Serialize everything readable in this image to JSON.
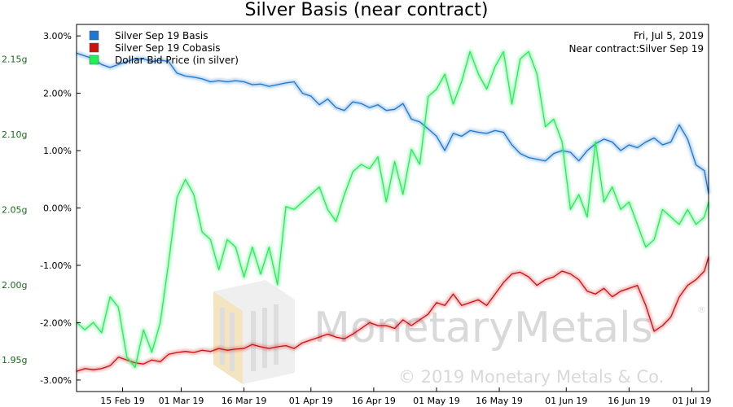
{
  "chart_data": {
    "type": "line",
    "title": "Silver Basis (near contract)",
    "annotation": {
      "date": "Fri, Jul 5, 2019",
      "contract": "Near contract:Silver Sep 19"
    },
    "watermark": {
      "brand": "MonetaryMetals",
      "copyright": "© 2019 Monetary Metals & Co.",
      "registered": "®"
    },
    "x_ticks": [
      "15 Feb 19",
      "01 Mar 19",
      "16 Mar 19",
      "01 Apr 19",
      "16 Apr 19",
      "01 May 19",
      "16 May 19",
      "01 Jun 19",
      "16 Jun 19",
      "01 Jul 19"
    ],
    "left_axis": {
      "ticks": [
        "3.00%",
        "2.00%",
        "1.00%",
        "0.00%",
        "-1.00%",
        "-2.00%",
        "-3.00%"
      ],
      "ylim": [
        -3.2,
        3.2
      ]
    },
    "right_axis": {
      "ticks": [
        "2.15g",
        "2.10g",
        "2.05g",
        "2.00g",
        "1.95g"
      ],
      "ylim": [
        1.929,
        2.173
      ]
    },
    "legend": [
      "Silver Sep 19 Basis",
      "Silver Sep 19 Cobasis",
      "Dollar Bid Price (in silver)"
    ],
    "xlim": [
      "2019-02-04",
      "2019-07-05"
    ],
    "series": [
      {
        "name": "Silver Sep 19 Basis",
        "axis": "left",
        "color": "#1f77d0",
        "x": [
          "2019-02-04",
          "2019-02-06",
          "2019-02-08",
          "2019-02-10",
          "2019-02-12",
          "2019-02-14",
          "2019-02-16",
          "2019-02-18",
          "2019-02-20",
          "2019-02-22",
          "2019-02-24",
          "2019-02-26",
          "2019-02-28",
          "2019-03-02",
          "2019-03-04",
          "2019-03-06",
          "2019-03-08",
          "2019-03-10",
          "2019-03-12",
          "2019-03-14",
          "2019-03-16",
          "2019-03-18",
          "2019-03-20",
          "2019-03-22",
          "2019-03-24",
          "2019-03-26",
          "2019-03-28",
          "2019-03-30",
          "2019-04-01",
          "2019-04-03",
          "2019-04-05",
          "2019-04-07",
          "2019-04-09",
          "2019-04-11",
          "2019-04-13",
          "2019-04-15",
          "2019-04-17",
          "2019-04-19",
          "2019-04-21",
          "2019-04-23",
          "2019-04-25",
          "2019-04-27",
          "2019-04-29",
          "2019-05-01",
          "2019-05-03",
          "2019-05-05",
          "2019-05-07",
          "2019-05-09",
          "2019-05-11",
          "2019-05-13",
          "2019-05-15",
          "2019-05-17",
          "2019-05-19",
          "2019-05-21",
          "2019-05-23",
          "2019-05-25",
          "2019-05-27",
          "2019-05-29",
          "2019-05-31",
          "2019-06-02",
          "2019-06-04",
          "2019-06-06",
          "2019-06-08",
          "2019-06-10",
          "2019-06-12",
          "2019-06-14",
          "2019-06-16",
          "2019-06-18",
          "2019-06-20",
          "2019-06-22",
          "2019-06-24",
          "2019-06-26",
          "2019-06-28",
          "2019-06-30",
          "2019-07-02",
          "2019-07-04",
          "2019-07-05"
        ],
        "values": [
          2.7,
          2.65,
          2.6,
          2.5,
          2.45,
          2.5,
          2.55,
          2.6,
          2.6,
          2.55,
          2.58,
          2.55,
          2.35,
          2.3,
          2.28,
          2.25,
          2.2,
          2.22,
          2.2,
          2.22,
          2.2,
          2.15,
          2.16,
          2.12,
          2.15,
          2.18,
          2.2,
          2.0,
          1.95,
          1.8,
          1.9,
          1.75,
          1.7,
          1.85,
          1.82,
          1.75,
          1.8,
          1.7,
          1.72,
          1.82,
          1.55,
          1.5,
          1.38,
          1.25,
          1.0,
          1.3,
          1.25,
          1.35,
          1.32,
          1.3,
          1.35,
          1.32,
          1.1,
          0.95,
          0.88,
          0.85,
          0.82,
          0.95,
          1.0,
          0.97,
          0.82,
          1.0,
          1.12,
          1.2,
          1.15,
          1.0,
          1.1,
          1.05,
          1.15,
          1.22,
          1.1,
          1.15,
          1.45,
          1.2,
          0.75,
          0.65,
          0.25
        ]
      },
      {
        "name": "Silver Sep 19 Cobasis",
        "axis": "left",
        "color": "#cc1111",
        "x": [
          "2019-02-04",
          "2019-02-06",
          "2019-02-08",
          "2019-02-10",
          "2019-02-12",
          "2019-02-14",
          "2019-02-16",
          "2019-02-18",
          "2019-02-20",
          "2019-02-22",
          "2019-02-24",
          "2019-02-26",
          "2019-02-28",
          "2019-03-02",
          "2019-03-04",
          "2019-03-06",
          "2019-03-08",
          "2019-03-10",
          "2019-03-12",
          "2019-03-14",
          "2019-03-16",
          "2019-03-18",
          "2019-03-20",
          "2019-03-22",
          "2019-03-24",
          "2019-03-26",
          "2019-03-28",
          "2019-03-30",
          "2019-04-01",
          "2019-04-03",
          "2019-04-05",
          "2019-04-07",
          "2019-04-09",
          "2019-04-11",
          "2019-04-13",
          "2019-04-15",
          "2019-04-17",
          "2019-04-19",
          "2019-04-21",
          "2019-04-23",
          "2019-04-25",
          "2019-04-27",
          "2019-04-29",
          "2019-05-01",
          "2019-05-03",
          "2019-05-05",
          "2019-05-07",
          "2019-05-09",
          "2019-05-11",
          "2019-05-13",
          "2019-05-15",
          "2019-05-17",
          "2019-05-19",
          "2019-05-21",
          "2019-05-23",
          "2019-05-25",
          "2019-05-27",
          "2019-05-29",
          "2019-05-31",
          "2019-06-02",
          "2019-06-04",
          "2019-06-06",
          "2019-06-08",
          "2019-06-10",
          "2019-06-12",
          "2019-06-14",
          "2019-06-16",
          "2019-06-18",
          "2019-06-20",
          "2019-06-22",
          "2019-06-24",
          "2019-06-26",
          "2019-06-28",
          "2019-06-30",
          "2019-07-02",
          "2019-07-04",
          "2019-07-05"
        ],
        "values": [
          -2.85,
          -2.8,
          -2.82,
          -2.8,
          -2.75,
          -2.6,
          -2.65,
          -2.7,
          -2.72,
          -2.65,
          -2.68,
          -2.55,
          -2.52,
          -2.5,
          -2.52,
          -2.48,
          -2.5,
          -2.45,
          -2.48,
          -2.46,
          -2.45,
          -2.38,
          -2.42,
          -2.45,
          -2.42,
          -2.4,
          -2.45,
          -2.35,
          -2.3,
          -2.25,
          -2.2,
          -2.25,
          -2.28,
          -2.2,
          -2.1,
          -2.0,
          -2.05,
          -2.05,
          -2.1,
          -1.95,
          -2.05,
          -1.95,
          -1.85,
          -1.65,
          -1.7,
          -1.5,
          -1.7,
          -1.65,
          -1.6,
          -1.7,
          -1.5,
          -1.3,
          -1.15,
          -1.12,
          -1.2,
          -1.35,
          -1.25,
          -1.2,
          -1.1,
          -1.15,
          -1.25,
          -1.45,
          -1.5,
          -1.4,
          -1.55,
          -1.45,
          -1.4,
          -1.35,
          -1.7,
          -2.15,
          -2.05,
          -1.9,
          -1.55,
          -1.35,
          -1.25,
          -1.1,
          -0.85
        ]
      },
      {
        "name": "Dollar Bid Price (in silver)",
        "axis": "right",
        "color": "#22ee55",
        "x": [
          "2019-02-04",
          "2019-02-06",
          "2019-02-08",
          "2019-02-10",
          "2019-02-12",
          "2019-02-14",
          "2019-02-16",
          "2019-02-18",
          "2019-02-20",
          "2019-02-22",
          "2019-02-24",
          "2019-02-26",
          "2019-02-28",
          "2019-03-02",
          "2019-03-04",
          "2019-03-06",
          "2019-03-08",
          "2019-03-10",
          "2019-03-12",
          "2019-03-14",
          "2019-03-16",
          "2019-03-18",
          "2019-03-20",
          "2019-03-22",
          "2019-03-24",
          "2019-03-26",
          "2019-03-28",
          "2019-03-30",
          "2019-04-01",
          "2019-04-03",
          "2019-04-05",
          "2019-04-07",
          "2019-04-09",
          "2019-04-11",
          "2019-04-13",
          "2019-04-15",
          "2019-04-17",
          "2019-04-19",
          "2019-04-21",
          "2019-04-23",
          "2019-04-25",
          "2019-04-27",
          "2019-04-29",
          "2019-05-01",
          "2019-05-03",
          "2019-05-05",
          "2019-05-07",
          "2019-05-09",
          "2019-05-11",
          "2019-05-13",
          "2019-05-15",
          "2019-05-17",
          "2019-05-19",
          "2019-05-21",
          "2019-05-23",
          "2019-05-25",
          "2019-05-27",
          "2019-05-29",
          "2019-05-31",
          "2019-06-02",
          "2019-06-04",
          "2019-06-06",
          "2019-06-08",
          "2019-06-10",
          "2019-06-12",
          "2019-06-14",
          "2019-06-16",
          "2019-06-18",
          "2019-06-20",
          "2019-06-22",
          "2019-06-24",
          "2019-06-26",
          "2019-06-28",
          "2019-06-30",
          "2019-07-02",
          "2019-07-04",
          "2019-07-05"
        ],
        "values": [
          1.975,
          1.97,
          1.975,
          1.968,
          1.992,
          1.985,
          1.952,
          1.945,
          1.97,
          1.955,
          1.975,
          2.015,
          2.058,
          2.07,
          2.06,
          2.035,
          2.03,
          2.01,
          2.03,
          2.025,
          2.005,
          2.025,
          2.007,
          2.025,
          2.0,
          2.052,
          2.05,
          2.055,
          2.06,
          2.065,
          2.05,
          2.042,
          2.06,
          2.075,
          2.08,
          2.077,
          2.085,
          2.055,
          2.082,
          2.06,
          2.09,
          2.08,
          2.125,
          2.13,
          2.14,
          2.12,
          2.135,
          2.155,
          2.14,
          2.13,
          2.145,
          2.155,
          2.12,
          2.15,
          2.155,
          2.14,
          2.105,
          2.11,
          2.095,
          2.05,
          2.06,
          2.045,
          2.095,
          2.055,
          2.065,
          2.05,
          2.055,
          2.04,
          2.025,
          2.03,
          2.05,
          2.045,
          2.04,
          2.05,
          2.04,
          2.045,
          2.055
        ]
      }
    ]
  }
}
